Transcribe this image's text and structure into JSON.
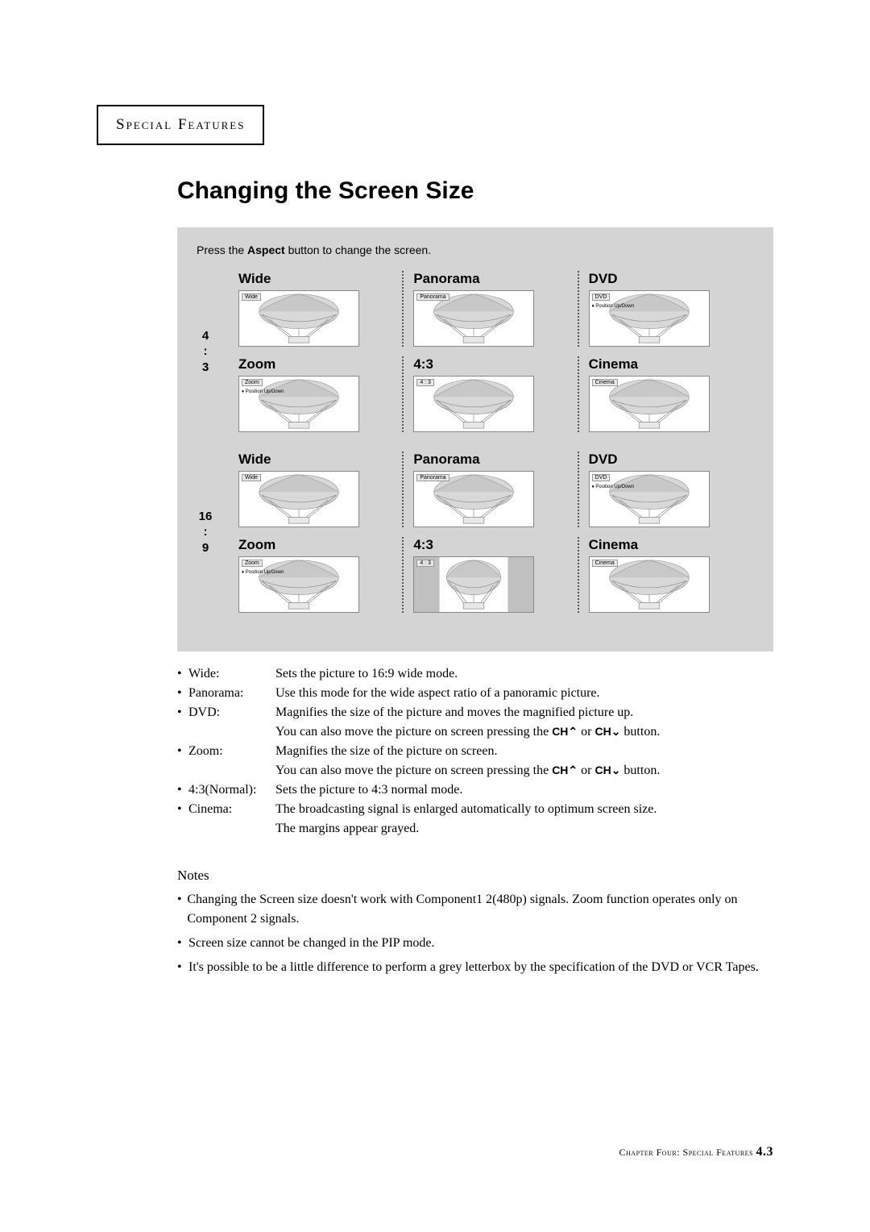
{
  "header": "Special Features",
  "title": "Changing the Screen Size",
  "instruction_pre": "Press the ",
  "instruction_bold": "Aspect",
  "instruction_post": " button to change the screen.",
  "sections": [
    {
      "ratio_a": "4",
      "ratio_b": ":",
      "ratio_c": "3",
      "cells": [
        {
          "name": "Wide",
          "tag": "Wide",
          "sub": "",
          "pillar": false,
          "wide": true
        },
        {
          "name": "Panorama",
          "tag": "Panorama",
          "sub": "",
          "pillar": false,
          "wide": true
        },
        {
          "name": "DVD",
          "tag": "DVD",
          "sub": "♦ Position Up/Down",
          "pillar": false,
          "wide": true
        },
        {
          "name": "Zoom",
          "tag": "Zoom",
          "sub": "♦ Position Up/Down",
          "pillar": false,
          "wide": true
        },
        {
          "name": "4:3",
          "tag": "4 : 3",
          "sub": "",
          "pillar": false,
          "wide": true
        },
        {
          "name": "Cinema",
          "tag": "Cinema",
          "sub": "",
          "pillar": false,
          "wide": true
        }
      ]
    },
    {
      "ratio_a": "16",
      "ratio_b": ":",
      "ratio_c": "9",
      "cells": [
        {
          "name": "Wide",
          "tag": "Wide",
          "sub": "",
          "pillar": false,
          "wide": true
        },
        {
          "name": "Panorama",
          "tag": "Panorama",
          "sub": "",
          "pillar": false,
          "wide": true
        },
        {
          "name": "DVD",
          "tag": "DVD",
          "sub": "♦ Position Up/Down",
          "pillar": false,
          "wide": true
        },
        {
          "name": "Zoom",
          "tag": "Zoom",
          "sub": "♦ Position Up/Down",
          "pillar": false,
          "wide": true
        },
        {
          "name": "4:3",
          "tag": "4 : 3",
          "sub": "",
          "pillar": true,
          "wide": false
        },
        {
          "name": "Cinema",
          "tag": "Cinema",
          "sub": "",
          "pillar": false,
          "wide": true
        }
      ]
    }
  ],
  "definitions": [
    {
      "term": "Wide:",
      "desc": "Sets the picture to 16:9 wide mode."
    },
    {
      "term": "Panorama:",
      "desc": "Use this mode for the wide aspect ratio of a panoramic picture."
    },
    {
      "term": "DVD:",
      "desc": "Magnifies the size of the picture and moves the magnified picture up."
    },
    {
      "term": "",
      "desc": "You can also move the picture on screen pressing the <span class='ch'>CH&#x2303;</span> or <span class='ch'>CH&#x2304;</span> button."
    },
    {
      "term": "Zoom:",
      "desc": "Magnifies the size of the picture on screen."
    },
    {
      "term": "",
      "desc": "You can also move the picture on screen pressing the <span class='ch'>CH&#x2303;</span> or <span class='ch'>CH&#x2304;</span> button."
    },
    {
      "term": "4:3(Normal):",
      "desc": "Sets the picture to 4:3 normal mode."
    },
    {
      "term": "Cinema:",
      "desc": "The broadcasting signal is enlarged automatically to optimum screen size."
    },
    {
      "term": "",
      "desc": "The margins appear grayed."
    }
  ],
  "notes_title": "Notes",
  "notes": [
    "Changing the Screen size doesn't work with Component1 2(480p) signals. Zoom function operates only on Component 2 signals.",
    "Screen size cannot be changed in the PIP mode.",
    "It's possible to be a little difference to perform a grey letterbox by the specification of the DVD or VCR Tapes."
  ],
  "footer_text": "Chapter Four: Special Features ",
  "footer_page": "4.3",
  "colors": {
    "panel_bg": "#d4d4d4",
    "tv_bg": "#ffffff",
    "balloon": "#b8b8b8"
  }
}
